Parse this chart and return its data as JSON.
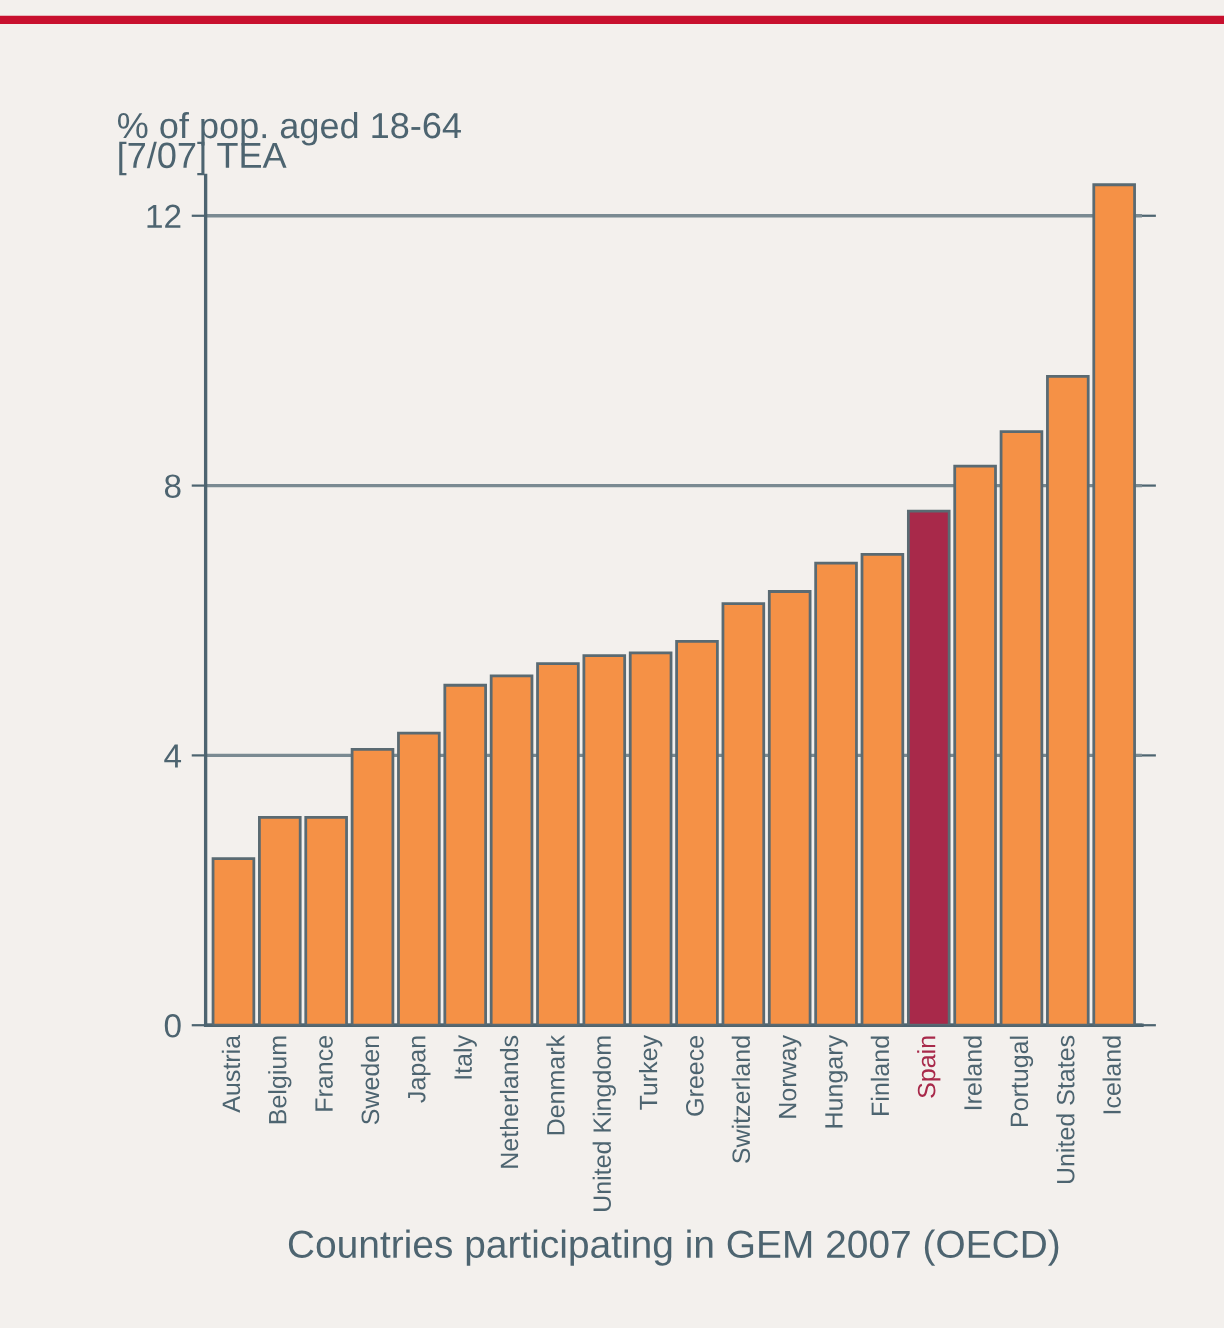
{
  "chart_data": {
    "type": "bar",
    "ylabel": "% of pop. aged 18-64\n[7/07] TEA",
    "xlabel": "Countries participating in GEM 2007 (OECD)",
    "categories": [
      "Austria",
      "Belgium",
      "France",
      "Sweden",
      "Japan",
      "Italy",
      "Netherlands",
      "Denmark",
      "United Kingdom",
      "Turkey",
      "Greece",
      "Switzerland",
      "Norway",
      "Hungary",
      "Finland",
      "Spain",
      "Ireland",
      "Portugal",
      "United States",
      "Iceland"
    ],
    "values": [
      2.47,
      3.08,
      3.08,
      4.09,
      4.33,
      5.04,
      5.18,
      5.36,
      5.48,
      5.52,
      5.69,
      6.25,
      6.43,
      6.85,
      6.98,
      7.62,
      8.29,
      8.8,
      9.62,
      12.46
    ],
    "colors": [
      "#f59146",
      "#f59146",
      "#f59146",
      "#f59146",
      "#f59146",
      "#f59146",
      "#f59146",
      "#f59146",
      "#f59146",
      "#f59146",
      "#f59146",
      "#f59146",
      "#f59146",
      "#f59146",
      "#f59146",
      "#a8294a",
      "#f59146",
      "#f59146",
      "#f59146",
      "#f59146"
    ],
    "ylim": [
      0,
      12.6
    ],
    "yticks": [
      0,
      4,
      8,
      12
    ],
    "grid": "y"
  }
}
